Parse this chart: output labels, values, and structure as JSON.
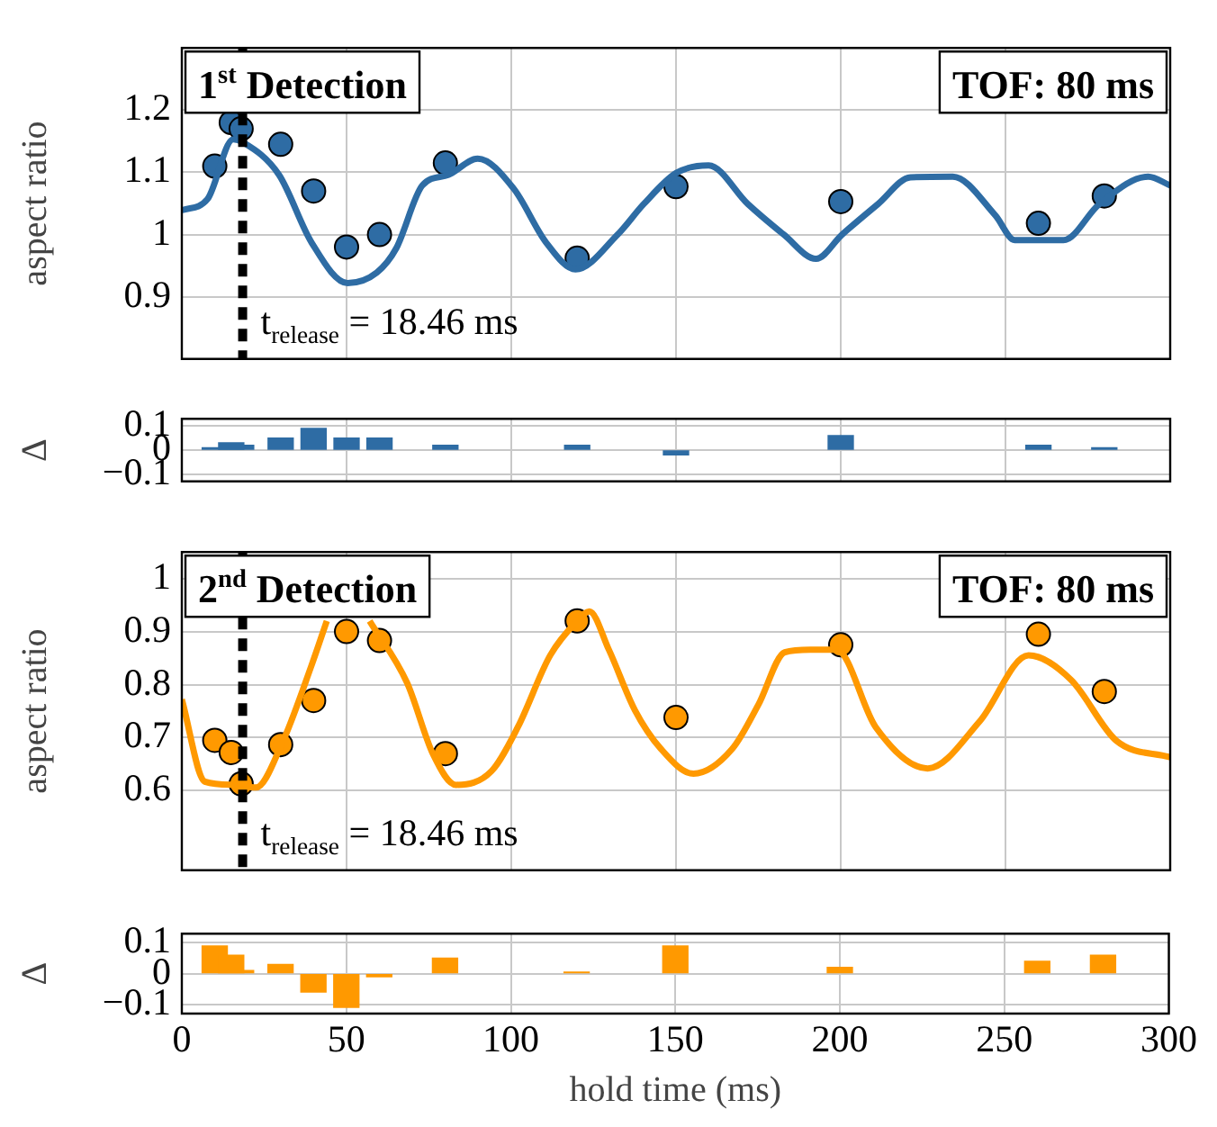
{
  "chart_data": [
    {
      "type": "line",
      "ylabel": "aspect ratio",
      "annotations": [
        "1$^{st}$ Detection",
        "TOF: 80 ms"
      ],
      "xlim": [
        0,
        300
      ],
      "xticks": [
        0,
        50,
        100,
        150,
        200,
        250,
        300
      ],
      "ylim": [
        0.8,
        1.3
      ],
      "yticks": [
        0.9,
        1,
        1.1,
        1.2
      ],
      "grid": true,
      "tick_labels": "y",
      "ref_lines": [
        {
          "axis": "x",
          "value": 18.46,
          "label": "t$_{release}$ = 18.46 ms",
          "color": "#000000",
          "line_style": "dashed"
        }
      ],
      "series": [
        {
          "type": "line",
          "color": "#2e6ca4",
          "marker": "none",
          "x": [
            0,
            7.8,
            15.6,
            18.6,
            29.5,
            39.4,
            50.3,
            59.2,
            65.1,
            73,
            80.9,
            89.8,
            100.7,
            110.6,
            119.5,
            132.3,
            140.2,
            150.1,
            159.9,
            171.8,
            182.7,
            192.5,
            200.4,
            211.3,
            221.2,
            234,
            246.9,
            252.8,
            267.6,
            278.5,
            293.3,
            300
          ],
          "values": [
            1.039,
            1.057,
            1.153,
            1.148,
            1.096,
            0.987,
            0.922,
            0.939,
            0.978,
            1.079,
            1.096,
            1.122,
            1.074,
            0.987,
            0.944,
            1.0,
            1.049,
            1.099,
            1.111,
            1.049,
            1.0,
            0.961,
            1.0,
            1.049,
            1.092,
            1.093,
            1.031,
            0.991,
            0.991,
            1.049,
            1.093,
            1.079
          ]
        },
        {
          "type": "scatter",
          "color": "#2e6ca4",
          "marker": "circle",
          "x": [
            10,
            15,
            18,
            30,
            40,
            50,
            60,
            80,
            120,
            150,
            200,
            260,
            280
          ],
          "values": [
            1.11,
            1.18,
            1.17,
            1.145,
            1.07,
            0.98,
            1.0,
            1.115,
            0.962,
            1.077,
            1.053,
            1.018,
            1.062
          ]
        }
      ]
    },
    {
      "type": "bar",
      "ylabel": "Δ",
      "color": "#2e6ca4",
      "x": [
        10,
        15,
        18,
        30,
        40,
        50,
        60,
        80,
        120,
        150,
        200,
        260,
        280
      ],
      "values": [
        0.01,
        0.03,
        0.02,
        0.05,
        0.09,
        0.05,
        0.05,
        0.02,
        0.02,
        -0.02,
        0.06,
        0.02,
        0.01
      ],
      "xlim": [
        0,
        300
      ],
      "xticks": [
        0,
        50,
        100,
        150,
        200,
        250,
        300
      ],
      "ylim": [
        -0.13,
        0.13
      ],
      "yticks": [
        {
          "value": -0.1,
          "label": "−0.1"
        },
        0,
        0.1
      ],
      "grid": true,
      "tick_labels": "y"
    },
    {
      "type": "line",
      "ylabel": "aspect ratio",
      "annotations": [
        "2$^{nd}$ Detection",
        "TOF: 80 ms"
      ],
      "xlim": [
        0,
        300
      ],
      "xticks": [
        0,
        50,
        100,
        150,
        200,
        250,
        300
      ],
      "ylim": [
        0.45,
        1.05
      ],
      "yticks": [
        0.6,
        0.7,
        0.8,
        0.9,
        1
      ],
      "grid": true,
      "tick_labels": "y",
      "ref_lines": [
        {
          "axis": "x",
          "value": 18.46,
          "label": "t$_{release}$ = 18.46 ms",
          "color": "#000000",
          "line_style": "dashed"
        }
      ],
      "series": [
        {
          "type": "line",
          "color": "#ff9900",
          "marker": "none",
          "x": [
            0,
            7,
            15.6,
            22.5,
            30.4,
            39.3,
            44,
            46.2,
            50,
            54.6,
            57,
            68.4,
            76.3,
            83.2,
            94,
            102,
            111.8,
            119.7,
            123.7,
            129.6,
            137.5,
            145.4,
            155.3,
            167.1,
            175,
            183,
            190.8,
            198.7,
            210.6,
            226.4,
            242.2,
            257,
            269.9,
            283.7,
            300
          ],
          "values": [
            0.772,
            0.617,
            0.611,
            0.606,
            0.689,
            0.835,
            0.92,
            null,
            null,
            null,
            0.92,
            0.803,
            0.668,
            0.611,
            0.637,
            0.72,
            0.855,
            0.918,
            0.938,
            0.866,
            0.752,
            0.679,
            0.632,
            0.679,
            0.762,
            0.861,
            0.866,
            0.866,
            0.72,
            0.642,
            0.731,
            0.855,
            0.809,
            0.694,
            0.663
          ]
        },
        {
          "type": "scatter",
          "color": "#ff9900",
          "marker": "circle",
          "x": [
            10,
            15,
            18,
            30,
            40,
            50,
            60,
            80,
            120,
            150,
            200,
            260,
            280
          ],
          "values": [
            0.695,
            0.672,
            0.613,
            0.687,
            0.77,
            0.9,
            0.883,
            0.67,
            0.92,
            0.738,
            0.875,
            0.895,
            0.787
          ]
        }
      ]
    },
    {
      "type": "bar",
      "ylabel": "Δ",
      "xlabel": "hold time (ms)",
      "color": "#ff9900",
      "x": [
        10,
        15,
        18,
        30,
        40,
        50,
        60,
        80,
        120,
        150,
        200,
        260,
        280
      ],
      "values": [
        0.09,
        0.06,
        0.01,
        0.03,
        -0.06,
        -0.11,
        -0.01,
        0.05,
        0.005,
        0.09,
        0.02,
        0.04,
        0.06
      ],
      "xlim": [
        0,
        300
      ],
      "xticks": [
        0,
        50,
        100,
        150,
        200,
        250,
        300
      ],
      "ylim": [
        -0.13,
        0.13
      ],
      "yticks": [
        {
          "value": -0.1,
          "label": "−0.1"
        },
        0,
        0.1
      ],
      "grid": true
    }
  ]
}
